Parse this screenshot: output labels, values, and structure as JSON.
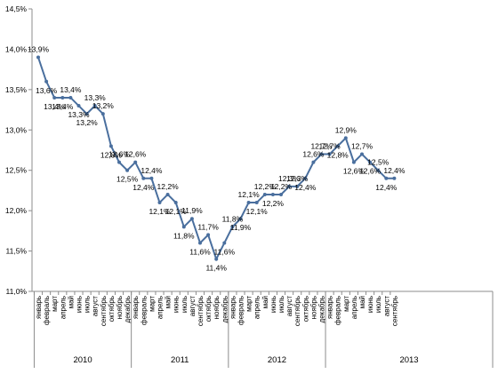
{
  "chart_data": {
    "type": "line",
    "title": "",
    "xlabel": "",
    "ylabel": "",
    "ylim": [
      11.0,
      14.5
    ],
    "yticks": [
      "11,0%",
      "11,5%",
      "12,0%",
      "12,5%",
      "13,0%",
      "13,5%",
      "14,0%",
      "14,5%"
    ],
    "grid": false,
    "legend": "none",
    "line_color": "#4a6f9e",
    "years": [
      "2010",
      "2011",
      "2012",
      "2013"
    ],
    "categories": [
      "январь",
      "февраль",
      "март",
      "апрель",
      "май",
      "июнь",
      "июль",
      "август",
      "сентябрь",
      "октябрь",
      "ноябрь",
      "декабрь",
      "январь",
      "февраль",
      "март",
      "апрель",
      "май",
      "июнь",
      "июль",
      "август",
      "сентябрь",
      "октябрь",
      "ноябрь",
      "декабрь",
      "январь",
      "февраль",
      "март",
      "апрель",
      "май",
      "июнь",
      "июль",
      "август",
      "сентябрь",
      "октябрь",
      "ноябрь",
      "декабрь",
      "январь",
      "февраль",
      "март",
      "апрель",
      "май",
      "июнь",
      "июль",
      "август",
      "сентябрь"
    ],
    "values": [
      13.9,
      13.6,
      13.4,
      13.4,
      13.4,
      13.3,
      13.2,
      13.3,
      13.2,
      12.8,
      12.6,
      12.5,
      12.6,
      12.4,
      12.4,
      12.1,
      12.2,
      12.1,
      11.8,
      11.9,
      11.6,
      11.7,
      11.4,
      11.6,
      11.8,
      11.9,
      12.1,
      12.1,
      12.2,
      12.2,
      12.2,
      12.3,
      12.3,
      12.4,
      12.6,
      12.7,
      12.7,
      12.8,
      12.9,
      12.6,
      12.7,
      12.6,
      12.5,
      12.4,
      12.4
    ],
    "data_labels": [
      "13,9%",
      "13,6%",
      "13,4%",
      "13,4%",
      "13,4%",
      "13,3%",
      "13,2%",
      "13,3%",
      "13,2%",
      "12,8%",
      "12,6%",
      "12,5%",
      "12,6%",
      "12,4%",
      "12,4%",
      "12,1%",
      "12,2%",
      "12,1%",
      "11,8%",
      "11,9%",
      "11,6%",
      "11,7%",
      "11,4%",
      "11,6%",
      "11,8%",
      "11,9%",
      "12,1%",
      "12,1%",
      "12,2%",
      "12,2%",
      "12,2%",
      "12,3%",
      "12,3%",
      "12,4%",
      "12,6%",
      "12,7%",
      "12,7%",
      "12,8%",
      "12,9%",
      "12,6%",
      "12,7%",
      "12,6%",
      "12,5%",
      "12,4%",
      "12,4%"
    ]
  }
}
